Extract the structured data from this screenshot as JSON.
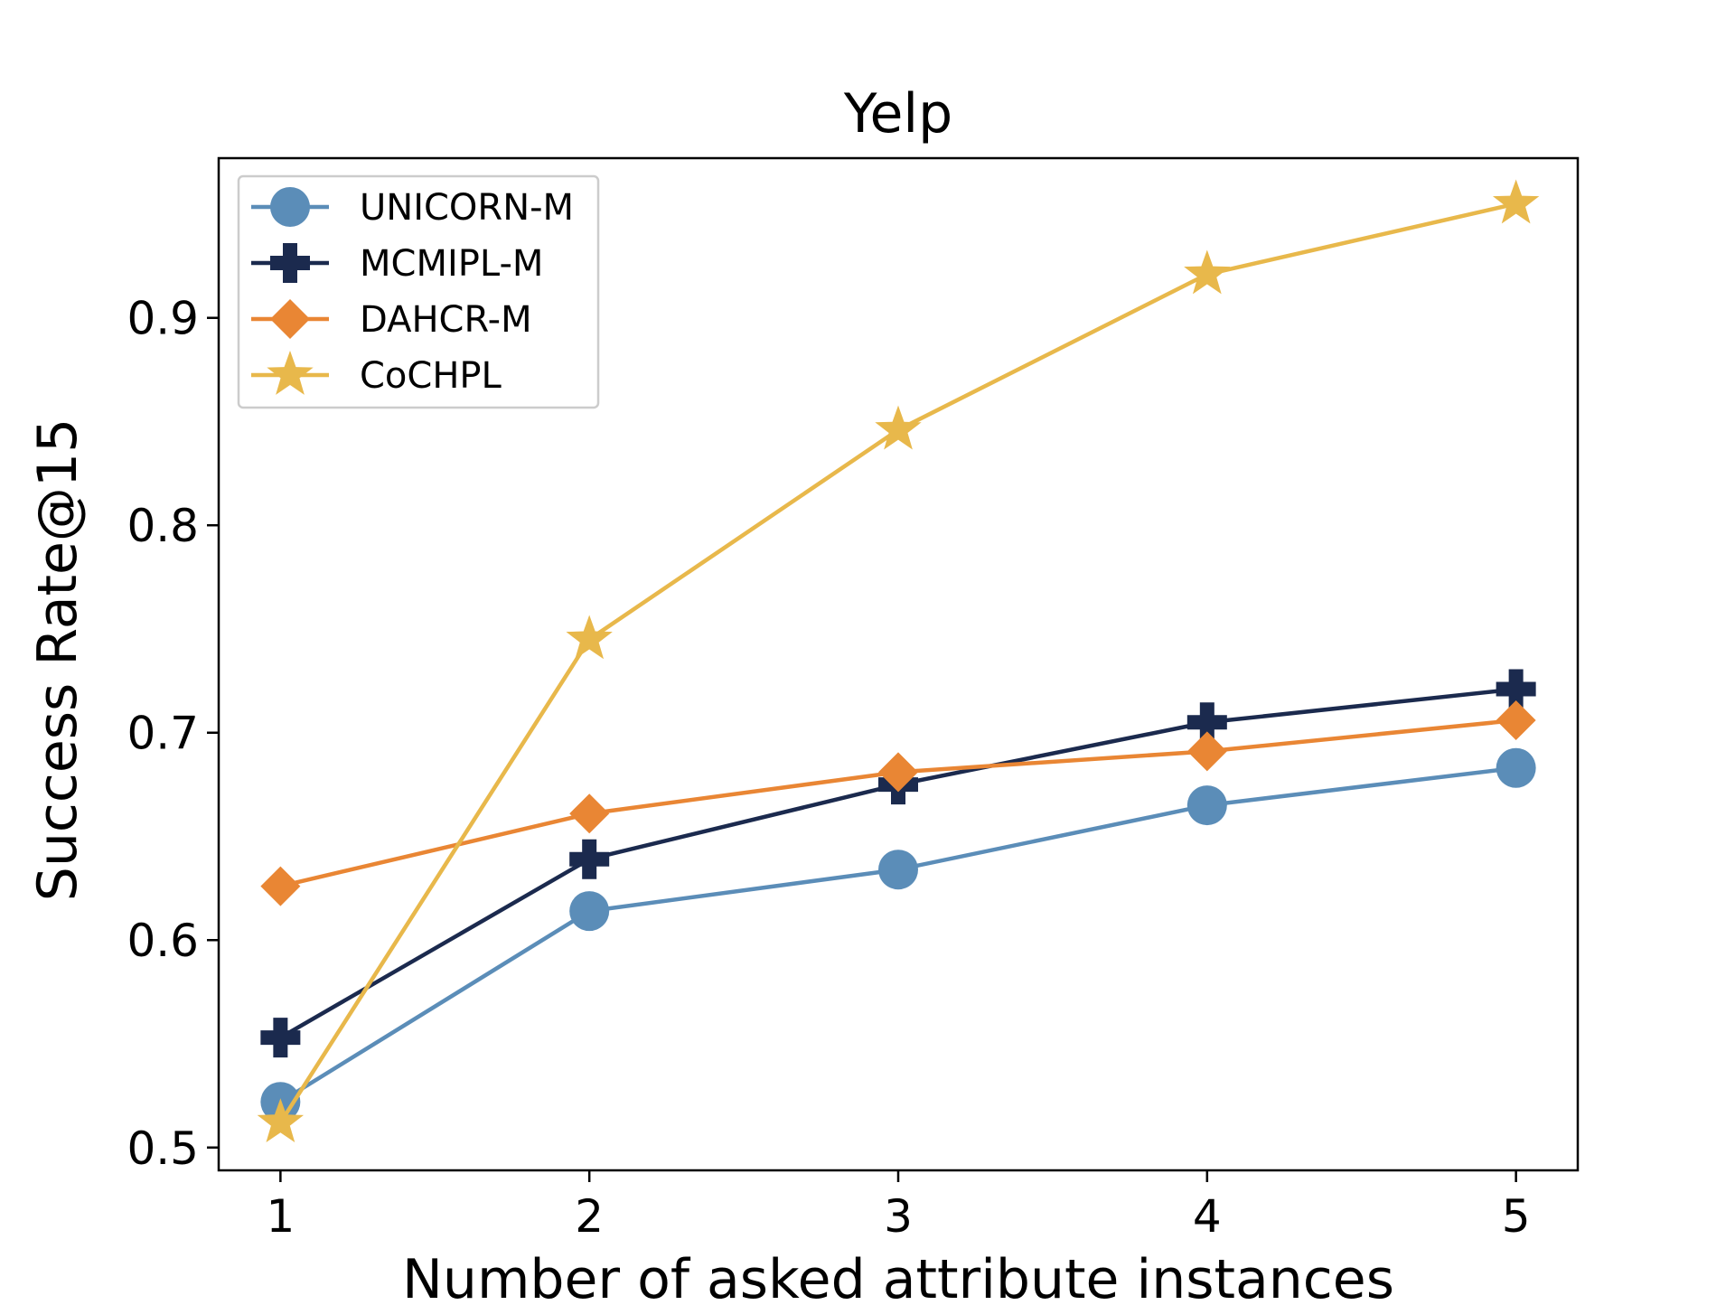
{
  "chart_data": {
    "type": "line",
    "title": "Yelp",
    "xlabel": "Number of asked attribute instances",
    "ylabel": "Success Rate@15",
    "x": [
      1,
      2,
      3,
      4,
      5
    ],
    "x_tick_labels": [
      "1",
      "2",
      "3",
      "4",
      "5"
    ],
    "y_ticks": [
      0.5,
      0.6,
      0.7,
      0.8,
      0.9
    ],
    "y_tick_labels": [
      "0.5",
      "0.6",
      "0.7",
      "0.8",
      "0.9"
    ],
    "xlim": [
      0.8,
      5.2
    ],
    "ylim": [
      0.489,
      0.977
    ],
    "grid": false,
    "legend_position": "top-left",
    "series": [
      {
        "name": "UNICORN-M",
        "marker": "circle",
        "color": "#5B8DB8",
        "values": [
          0.522,
          0.614,
          0.634,
          0.665,
          0.683
        ]
      },
      {
        "name": "MCMIPL-M",
        "marker": "plus",
        "color": "#1B2A4E",
        "values": [
          0.553,
          0.639,
          0.675,
          0.705,
          0.721
        ]
      },
      {
        "name": "DAHCR-M",
        "marker": "diamond",
        "color": "#E98634",
        "values": [
          0.626,
          0.661,
          0.681,
          0.691,
          0.706
        ]
      },
      {
        "name": "CoCHPL",
        "marker": "star",
        "color": "#E8B84B",
        "values": [
          0.512,
          0.745,
          0.846,
          0.921,
          0.955
        ]
      }
    ]
  }
}
